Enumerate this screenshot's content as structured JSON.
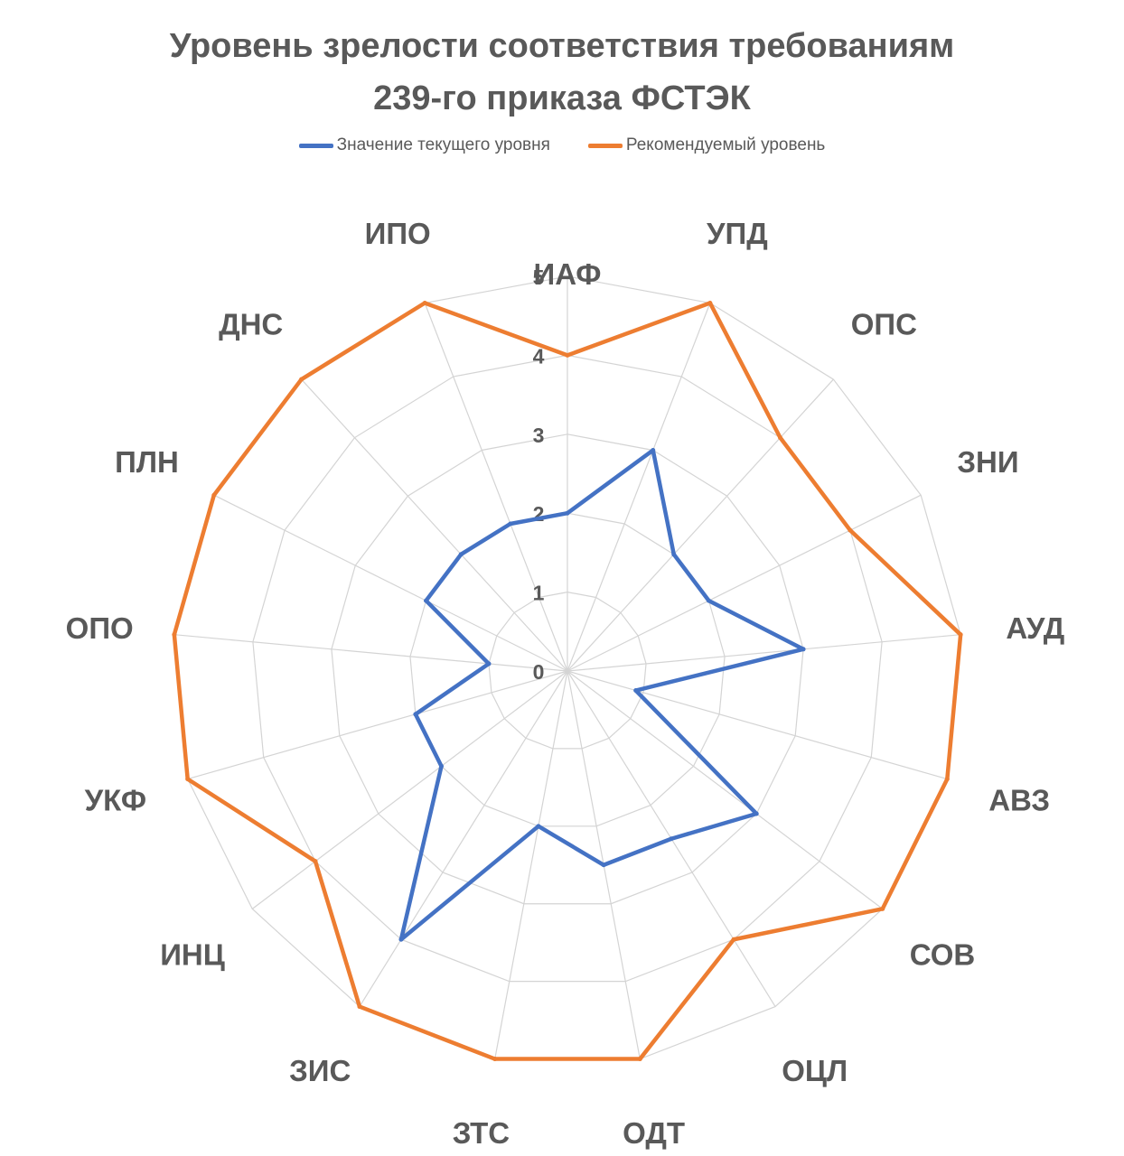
{
  "chart_data": {
    "type": "radar",
    "title_line1": "Уровень зрелости соответствия требованиям",
    "title_line2": "239-го приказа ФСТЭК",
    "categories": [
      "ИАФ",
      "УПД",
      "ОПС",
      "ЗНИ",
      "АУД",
      "АВЗ",
      "СОВ",
      "ОЦЛ",
      "ОДТ",
      "ЗТС",
      "ЗИС",
      "ИНЦ",
      "УКФ",
      "ОПО",
      "ПЛН",
      "ДНС",
      "ИПО"
    ],
    "series": [
      {
        "name": "Значение текущего уровня",
        "color": "#4472C4",
        "values": [
          2.0,
          3.0,
          2.0,
          2.0,
          3.0,
          0.9,
          3.0,
          2.5,
          2.5,
          2.0,
          4.0,
          2.0,
          2.0,
          1.0,
          2.0,
          2.0,
          2.0
        ]
      },
      {
        "name": "Рекомендуемый уровень",
        "color": "#ED7D31",
        "values": [
          4,
          5,
          4,
          4,
          5,
          5,
          5,
          4,
          5,
          5,
          5,
          4,
          5,
          5,
          5,
          5,
          5
        ]
      }
    ],
    "ticks": [
      "0",
      "1",
      "2",
      "3",
      "4",
      "5"
    ],
    "rmax": 5,
    "grid": true,
    "legend_position": "top"
  }
}
